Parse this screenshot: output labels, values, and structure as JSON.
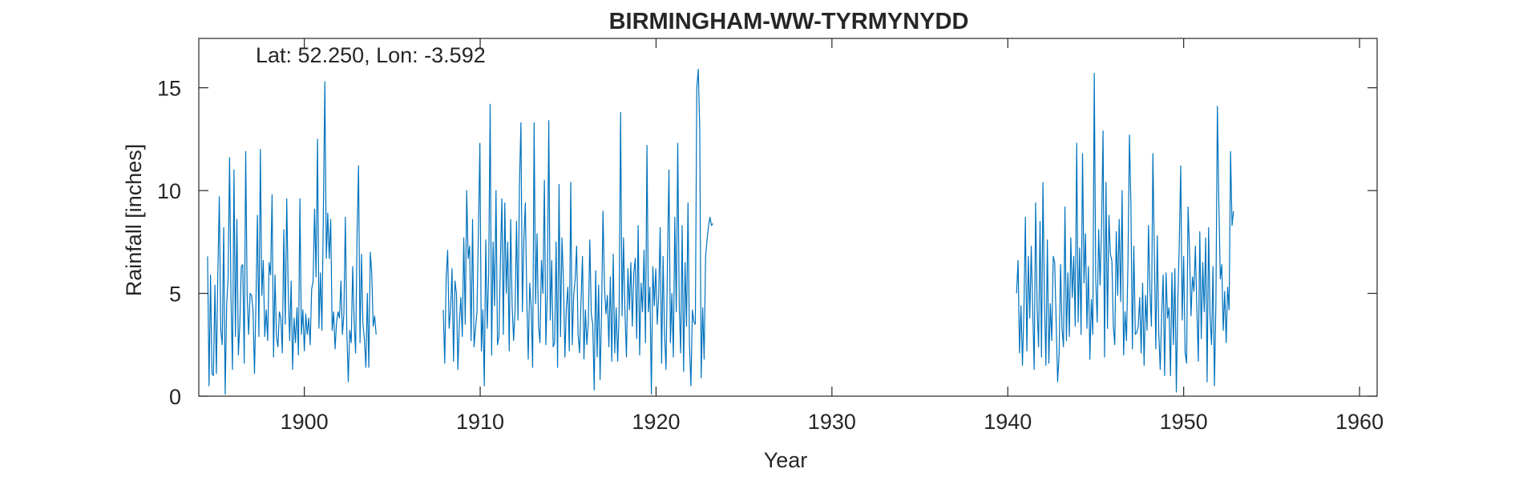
{
  "chart_data": {
    "type": "line",
    "title": "BIRMINGHAM-WW-TYRMYNYDD",
    "annotation": "Lat: 52.250, Lon: -3.592",
    "xlabel": "Year",
    "ylabel": "Rainfall [inches]",
    "xlim": [
      1894.0,
      1961.0
    ],
    "ylim": [
      0,
      17.4
    ],
    "xticks": [
      1900,
      1910,
      1920,
      1930,
      1940,
      1950,
      1960
    ],
    "yticks": [
      0,
      5,
      10,
      15
    ],
    "grid": false,
    "line_color": "#0072bd",
    "series": [
      {
        "segments": [
          {
            "start": 1894.5,
            "values": [
              6.8,
              0.5,
              5.9,
              1.1,
              1.0,
              5.4,
              1.1,
              6.0,
              9.7,
              3.2,
              2.5,
              8.2,
              0.1,
              4.4,
              5.8,
              11.6,
              4.6,
              1.3,
              11.0,
              2.9,
              8.6,
              2.0,
              3.5,
              6.3,
              6.4,
              1.6,
              11.9,
              4.9,
              3.0,
              5.0,
              4.9,
              4.2,
              1.1,
              4.6,
              8.8,
              2.9,
              12.0,
              4.9,
              6.6,
              2.9,
              4.2,
              2.7,
              6.5,
              5.9,
              9.8,
              1.9,
              5.9,
              2.9,
              2.4,
              4.1,
              3.8,
              2.1,
              8.1,
              3.5,
              9.6,
              5.2,
              2.7,
              5.6,
              1.3,
              3.8,
              2.6,
              4.3,
              2.0,
              9.6,
              3.0,
              4.2,
              2.2,
              4.0,
              3.0,
              3.8,
              2.5,
              5.2,
              5.6,
              9.1,
              5.8,
              12.5,
              3.3,
              6.0,
              3.2,
              8.9,
              15.3,
              6.7,
              8.9,
              6.7,
              8.6,
              3.2,
              4.1,
              2.3,
              3.6,
              4.1,
              3.8,
              5.6,
              3.0,
              4.0,
              8.7,
              3.2,
              0.7,
              3.2,
              2.6,
              6.3,
              3.6,
              2.1,
              7.9,
              11.2,
              2.6,
              6.9,
              3.5,
              2.8,
              1.4,
              5.0,
              1.4,
              7.0,
              6.0,
              3.4,
              3.9,
              3.0
            ]
          },
          {
            "start": 1907.9,
            "values": [
              4.2,
              1.6,
              5.8,
              7.1,
              3.3,
              4.2,
              6.2,
              1.7,
              5.6,
              5.0,
              1.3,
              3.6,
              4.8,
              2.9,
              7.7,
              3.5,
              10.0,
              6.7,
              7.3,
              2.7,
              8.6,
              2.4,
              3.3,
              4.1,
              8.0,
              12.3,
              2.2,
              4.2,
              0.5,
              7.6,
              3.3,
              6.0,
              14.2,
              2.0,
              7.5,
              4.4,
              10.0,
              2.5,
              2.9,
              6.6,
              9.6,
              3.0,
              9.4,
              5.0,
              7.5,
              2.2,
              8.6,
              4.4,
              2.7,
              4.2,
              8.5,
              3.7,
              10.3,
              13.3,
              4.1,
              7.6,
              9.4,
              4.7,
              1.8,
              5.5,
              4.3,
              1.4,
              13.3,
              4.5,
              7.9,
              3.4,
              2.6,
              6.6,
              5.0,
              10.5,
              2.5,
              5.0,
              13.4,
              3.7,
              6.6,
              2.4,
              2.6,
              7.5,
              1.4,
              10.3,
              2.9,
              7.7,
              5.6,
              1.9,
              4.3,
              5.3,
              2.2,
              10.4,
              2.5,
              4.9,
              5.7,
              7.3,
              3.0,
              2.1,
              4.6,
              6.8,
              1.8,
              4.2,
              2.5,
              3.6,
              7.6,
              4.0,
              3.5,
              0.3,
              6.1,
              1.9,
              5.4,
              0.8,
              4.0,
              9.0,
              5.3,
              4.0,
              4.9,
              2.4,
              5.8,
              1.7,
              6.9,
              2.1,
              4.3,
              1.7,
              4.1,
              13.8,
              3.9,
              7.7,
              4.0,
              1.9,
              6.2,
              4.2,
              6.5,
              3.4,
              6.0,
              6.7,
              2.8,
              8.3,
              2.0,
              5.5,
              4.1,
              7.1,
              2.6,
              12.2,
              4.1,
              5.3,
              0.1,
              6.3,
              4.4,
              6.2,
              3.5,
              4.9,
              8.2,
              1.6,
              6.8,
              3.0,
              1.3,
              6.7,
              11.0,
              2.6,
              5.0,
              1.9,
              8.7,
              4.1,
              12.3,
              4.5,
              2.1,
              8.3,
              1.2,
              6.5,
              3.4,
              9.4,
              2.5,
              0.5,
              4.2,
              3.6,
              3.5,
              15.0,
              15.9,
              13.0,
              0.9,
              4.3,
              1.8,
              6.8,
              7.6,
              8.3,
              8.7,
              8.3,
              8.4
            ]
          },
          {
            "start": 1940.5,
            "values": [
              5.0,
              6.6,
              2.1,
              4.4,
              1.5,
              4.2,
              8.7,
              2.2,
              6.8,
              3.8,
              7.3,
              4.2,
              1.3,
              9.4,
              4.3,
              2.4,
              8.5,
              1.9,
              10.4,
              4.7,
              1.5,
              7.6,
              1.6,
              4.5,
              2.7,
              6.8,
              6.5,
              3.6,
              0.7,
              2.0,
              6.4,
              3.3,
              2.4,
              9.2,
              2.7,
              6.0,
              2.9,
              7.7,
              4.8,
              6.8,
              3.4,
              12.3,
              3.6,
              7.2,
              3.0,
              11.8,
              5.5,
              7.9,
              3.3,
              6.3,
              1.8,
              4.7,
              3.0,
              15.7,
              5.7,
              3.6,
              8.1,
              5.4,
              8.4,
              12.9,
              1.9,
              10.4,
              3.3,
              8.8,
              6.9,
              6.6,
              3.4,
              2.5,
              8.0,
              4.9,
              8.6,
              4.6,
              10.0,
              2.0,
              4.1,
              2.7,
              6.5,
              12.7,
              9.3,
              2.3,
              7.3,
              3.0,
              3.1,
              3.4,
              4.8,
              2.1,
              5.5,
              1.5,
              4.9,
              3.2,
              8.3,
              5.1,
              3.4,
              11.8,
              6.9,
              2.3,
              7.8,
              3.1,
              1.3,
              4.0,
              5.9,
              1.0,
              6.0,
              3.8,
              4.3,
              1.0,
              6.0,
              2.5,
              6.2,
              0.2,
              4.6,
              7.4,
              11.2,
              3.7,
              6.8,
              2.1,
              1.6,
              9.2,
              7.1,
              3.9,
              5.8,
              5.1,
              7.3,
              4.2,
              1.7,
              8.0,
              2.8,
              6.5,
              4.1,
              7.7,
              0.7,
              8.2,
              3.9,
              2.5,
              6.3,
              0.5,
              4.6,
              14.1,
              9.4,
              5.7,
              6.4,
              3.2,
              5.1,
              2.6,
              5.3,
              4.2,
              11.9,
              8.3,
              9.0
            ]
          }
        ]
      }
    ]
  }
}
